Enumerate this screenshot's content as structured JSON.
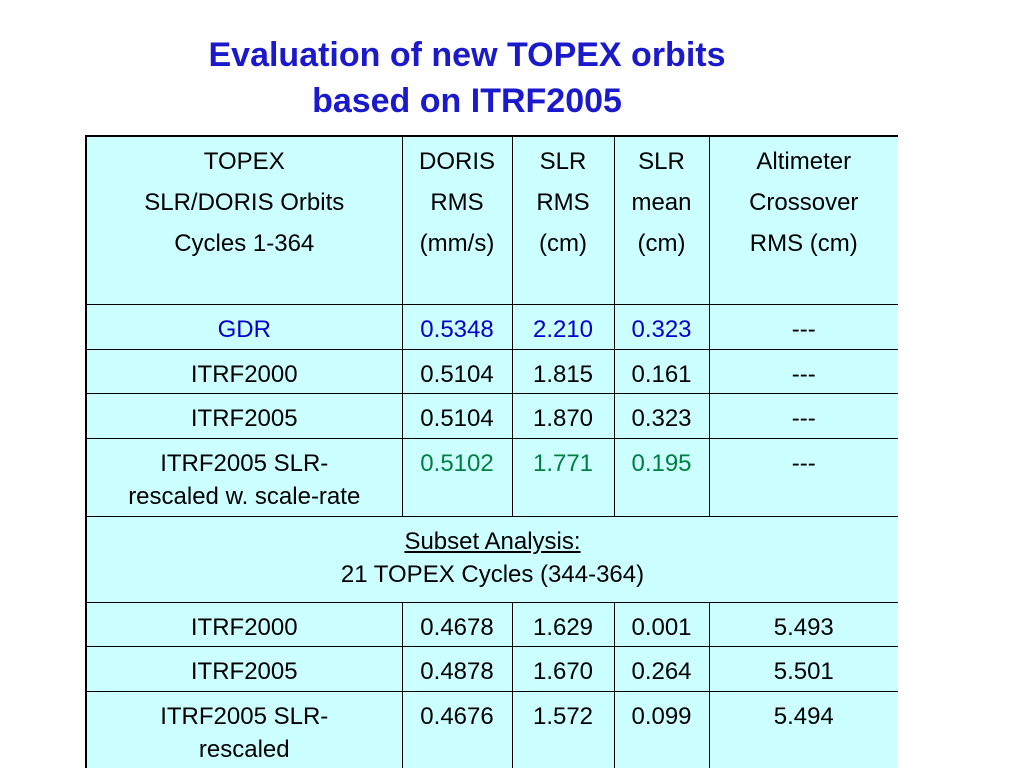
{
  "title": [
    "Evaluation of new TOPEX orbits",
    "based on ITRF2005"
  ],
  "table": {
    "header": [
      [
        "TOPEX",
        "SLR/DORIS Orbits",
        "Cycles 1-364"
      ],
      [
        "DORIS",
        "RMS",
        "(mm/s)"
      ],
      [
        "SLR",
        "RMS",
        "(cm)"
      ],
      [
        "SLR",
        "mean",
        "(cm)"
      ],
      [
        "Altimeter",
        "Crossover",
        "RMS (cm)"
      ]
    ],
    "rows": [
      {
        "label": [
          "GDR"
        ],
        "values": [
          "0.5348",
          "2.210",
          "0.323",
          "---"
        ],
        "label_color": "#0000cc",
        "value_color": "#0000cc"
      },
      {
        "label": [
          "ITRF2000"
        ],
        "values": [
          "0.5104",
          "1.815",
          "0.161",
          "---"
        ]
      },
      {
        "label": [
          "ITRF2005"
        ],
        "values": [
          "0.5104",
          "1.870",
          "0.323",
          "---"
        ]
      },
      {
        "label": [
          "ITRF2005 SLR-",
          "rescaled w. scale-rate"
        ],
        "values": [
          "0.5102",
          "1.771",
          "0.195",
          "---"
        ],
        "value_color": "#008040"
      }
    ],
    "subset": {
      "heading": "Subset Analysis:",
      "text": "21 TOPEX Cycles (344-364)"
    },
    "subset_rows": [
      {
        "label": [
          "ITRF2000"
        ],
        "values": [
          "0.4678",
          "1.629",
          "0.001",
          "5.493"
        ]
      },
      {
        "label": [
          "ITRF2005"
        ],
        "values": [
          "0.4878",
          "1.670",
          "0.264",
          "5.501"
        ]
      },
      {
        "label": [
          "ITRF2005 SLR-",
          "rescaled"
        ],
        "values": [
          "0.4676",
          "1.572",
          "0.099",
          "5.494"
        ]
      }
    ]
  }
}
